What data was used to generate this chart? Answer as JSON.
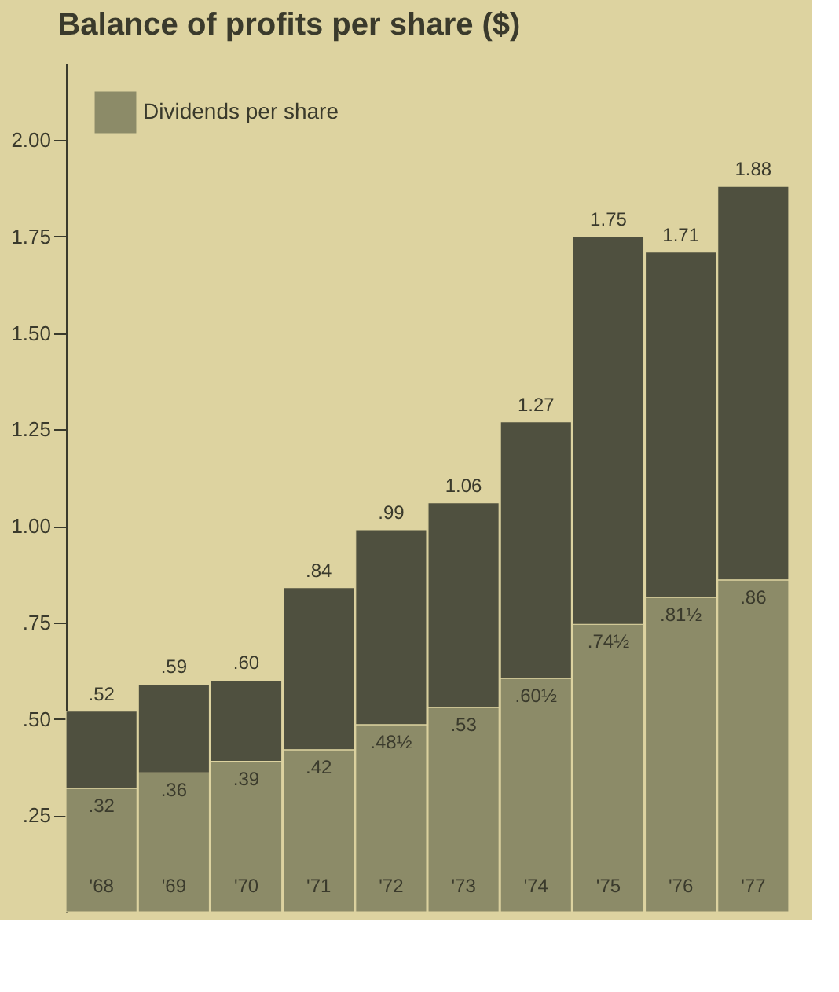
{
  "chart_data": {
    "type": "bar",
    "title": "Balance of profits per share ($)",
    "categories": [
      "'68",
      "'69",
      "'70",
      "'71",
      "'72",
      "'73",
      "'74",
      "'75",
      "'76",
      "'77"
    ],
    "stacked": true,
    "series": [
      {
        "name": "Dividends per share",
        "color": "#8c8b68",
        "values": [
          0.32,
          0.36,
          0.39,
          0.42,
          0.485,
          0.53,
          0.605,
          0.745,
          0.815,
          0.86
        ],
        "value_labels": [
          ".32",
          ".36",
          ".39",
          ".42",
          ".48½",
          ".53",
          ".60½",
          ".74½",
          ".81½",
          ".86"
        ]
      },
      {
        "color": "#4f503f",
        "values": [
          0.2,
          0.23,
          0.21,
          0.42,
          0.505,
          0.53,
          0.665,
          1.005,
          0.895,
          1.02
        ]
      }
    ],
    "totals": [
      ".52",
      ".59",
      ".60",
      ".84",
      ".99",
      "1.06",
      "1.27",
      "1.75",
      "1.71",
      "1.88"
    ],
    "ylim": [
      0,
      2.2
    ],
    "yticks": [
      {
        "value": 0.25,
        "label": ".25"
      },
      {
        "value": 0.5,
        "label": ".50"
      },
      {
        "value": 0.75,
        "label": ".75"
      },
      {
        "value": 1.0,
        "label": "1.00"
      },
      {
        "value": 1.25,
        "label": "1.25"
      },
      {
        "value": 1.5,
        "label": "1.50"
      },
      {
        "value": 1.75,
        "label": "1.75"
      },
      {
        "value": 2.0,
        "label": "2.00"
      }
    ],
    "legend": "top left"
  }
}
